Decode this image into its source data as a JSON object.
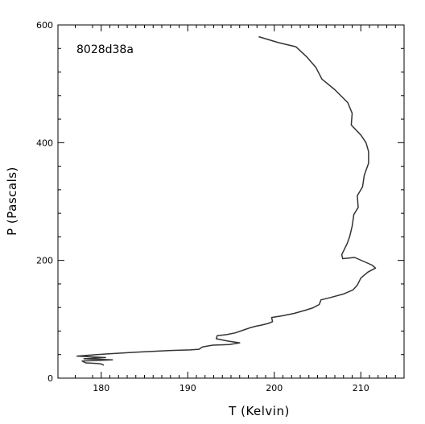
{
  "chart_data": {
    "type": "line",
    "title": "",
    "annotation": "8028d38a",
    "xlabel": "T (Kelvin)",
    "ylabel": "P (Pascals)",
    "xlim": [
      175,
      215
    ],
    "ylim": [
      0,
      600
    ],
    "xticks_major": [
      180,
      190,
      200,
      210
    ],
    "xticks_minor": [
      175,
      177,
      179,
      181,
      182,
      183,
      184,
      185,
      186,
      187,
      188,
      189,
      191,
      192,
      193,
      194,
      195,
      196,
      197,
      198,
      199,
      201,
      202,
      203,
      204,
      205,
      206,
      207,
      208,
      209,
      211,
      212,
      213,
      214,
      215
    ],
    "yticks_major": [
      0,
      200,
      400,
      600
    ],
    "yticks_minor": [
      40,
      80,
      120,
      160,
      240,
      280,
      320,
      360,
      440,
      480,
      520,
      560
    ],
    "grid": false,
    "series": [
      {
        "color": "#333333",
        "points": [
          [
            198.2,
            580
          ],
          [
            200.5,
            570
          ],
          [
            202.5,
            563
          ],
          [
            203.8,
            545
          ],
          [
            204.8,
            528
          ],
          [
            205.5,
            508
          ],
          [
            207.0,
            490
          ],
          [
            208.5,
            468
          ],
          [
            209.0,
            450
          ],
          [
            208.9,
            430
          ],
          [
            210.0,
            413
          ],
          [
            210.6,
            400
          ],
          [
            210.9,
            385
          ],
          [
            210.9,
            365
          ],
          [
            210.4,
            345
          ],
          [
            210.2,
            325
          ],
          [
            209.6,
            310
          ],
          [
            209.7,
            290
          ],
          [
            209.2,
            278
          ],
          [
            209.0,
            258
          ],
          [
            208.7,
            240
          ],
          [
            208.4,
            228
          ],
          [
            207.8,
            210
          ],
          [
            207.9,
            203
          ],
          [
            209.3,
            205
          ],
          [
            211.3,
            192
          ],
          [
            211.7,
            187
          ],
          [
            210.8,
            180
          ],
          [
            210.0,
            170
          ],
          [
            209.6,
            158
          ],
          [
            209.1,
            150
          ],
          [
            208.0,
            143
          ],
          [
            206.5,
            137
          ],
          [
            205.4,
            133
          ],
          [
            205.2,
            125
          ],
          [
            204.4,
            119
          ],
          [
            203.5,
            115
          ],
          [
            202.3,
            110
          ],
          [
            201.0,
            106
          ],
          [
            199.7,
            103
          ],
          [
            199.8,
            96
          ],
          [
            199.3,
            93
          ],
          [
            198.5,
            90
          ],
          [
            197.8,
            88
          ],
          [
            197.3,
            86
          ],
          [
            196.5,
            82
          ],
          [
            195.5,
            77
          ],
          [
            194.5,
            74
          ],
          [
            193.4,
            72
          ],
          [
            193.3,
            67
          ],
          [
            194.6,
            63
          ],
          [
            196.0,
            60
          ],
          [
            194.8,
            57
          ],
          [
            192.9,
            56
          ],
          [
            191.7,
            53
          ],
          [
            191.3,
            49
          ],
          [
            190.3,
            48
          ],
          [
            188.0,
            47
          ],
          [
            184.0,
            44
          ],
          [
            179.5,
            40
          ],
          [
            177.2,
            37.5
          ],
          [
            180.5,
            35
          ],
          [
            178.0,
            33
          ],
          [
            181.3,
            31
          ],
          [
            177.8,
            29
          ],
          [
            178.2,
            26
          ],
          [
            179.5,
            25
          ],
          [
            180.0,
            24
          ],
          [
            180.3,
            22
          ]
        ]
      }
    ]
  }
}
